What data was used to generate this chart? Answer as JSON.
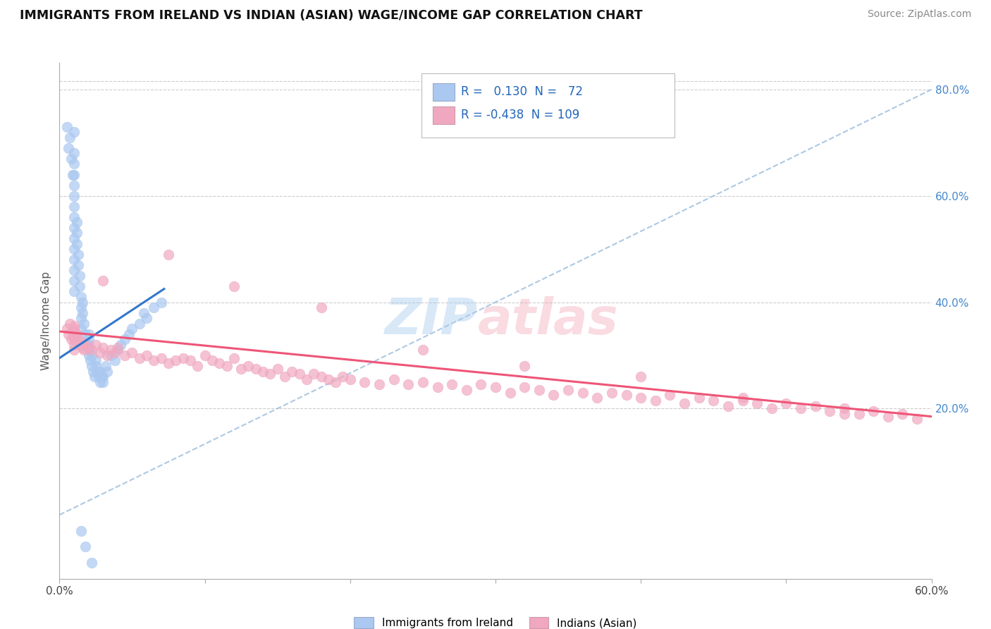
{
  "title": "IMMIGRANTS FROM IRELAND VS INDIAN (ASIAN) WAGE/INCOME GAP CORRELATION CHART",
  "source": "Source: ZipAtlas.com",
  "ylabel": "Wage/Income Gap",
  "x_min": 0.0,
  "x_max": 0.6,
  "y_min": -0.12,
  "y_max": 0.85,
  "ytick_values": [
    0.2,
    0.4,
    0.6,
    0.8
  ],
  "ytick_labels": [
    "20.0%",
    "40.0%",
    "60.0%",
    "80.0%"
  ],
  "xtick_values": [
    0.0,
    0.1,
    0.2,
    0.3,
    0.4,
    0.5,
    0.6
  ],
  "xtick_labels": [
    "0.0%",
    "",
    "",
    "",
    "",
    "",
    "60.0%"
  ],
  "legend_r_ireland": " 0.130",
  "legend_n_ireland": " 72",
  "legend_r_indian": "-0.438",
  "legend_n_indian": "109",
  "ireland_color": "#aac8f0",
  "indian_color": "#f0a8c0",
  "ireland_line_color": "#3377cc",
  "indian_line_color": "#ee5577",
  "diagonal_color": "#99bbdd",
  "watermark_zip": "ZIP",
  "watermark_atlas": "atlas",
  "ireland_scatter_x": [
    0.005,
    0.006,
    0.007,
    0.008,
    0.009,
    0.01,
    0.01,
    0.01,
    0.01,
    0.01,
    0.01,
    0.01,
    0.01,
    0.01,
    0.01,
    0.01,
    0.01,
    0.01,
    0.01,
    0.01,
    0.012,
    0.012,
    0.012,
    0.013,
    0.013,
    0.014,
    0.014,
    0.015,
    0.015,
    0.015,
    0.015,
    0.016,
    0.016,
    0.017,
    0.018,
    0.019,
    0.02,
    0.02,
    0.02,
    0.02,
    0.02,
    0.021,
    0.022,
    0.022,
    0.023,
    0.024,
    0.025,
    0.025,
    0.026,
    0.027,
    0.028,
    0.028,
    0.029,
    0.03,
    0.03,
    0.032,
    0.033,
    0.035,
    0.038,
    0.04,
    0.042,
    0.045,
    0.048,
    0.05,
    0.055,
    0.058,
    0.06,
    0.065,
    0.07,
    0.015,
    0.018,
    0.022
  ],
  "ireland_scatter_y": [
    0.73,
    0.69,
    0.71,
    0.67,
    0.64,
    0.72,
    0.68,
    0.66,
    0.64,
    0.62,
    0.6,
    0.58,
    0.56,
    0.54,
    0.52,
    0.5,
    0.48,
    0.46,
    0.44,
    0.42,
    0.55,
    0.53,
    0.51,
    0.49,
    0.47,
    0.45,
    0.43,
    0.41,
    0.39,
    0.37,
    0.35,
    0.4,
    0.38,
    0.36,
    0.34,
    0.32,
    0.3,
    0.31,
    0.32,
    0.33,
    0.34,
    0.29,
    0.28,
    0.3,
    0.27,
    0.26,
    0.28,
    0.29,
    0.27,
    0.26,
    0.25,
    0.27,
    0.26,
    0.25,
    0.26,
    0.28,
    0.27,
    0.3,
    0.29,
    0.31,
    0.32,
    0.33,
    0.34,
    0.35,
    0.36,
    0.38,
    0.37,
    0.39,
    0.4,
    -0.03,
    -0.06,
    -0.09
  ],
  "indian_scatter_x": [
    0.005,
    0.006,
    0.007,
    0.008,
    0.009,
    0.01,
    0.01,
    0.01,
    0.01,
    0.01,
    0.01,
    0.01,
    0.01,
    0.012,
    0.013,
    0.014,
    0.015,
    0.016,
    0.017,
    0.018,
    0.02,
    0.022,
    0.025,
    0.028,
    0.03,
    0.033,
    0.035,
    0.038,
    0.04,
    0.045,
    0.05,
    0.055,
    0.06,
    0.065,
    0.07,
    0.075,
    0.08,
    0.085,
    0.09,
    0.095,
    0.1,
    0.105,
    0.11,
    0.115,
    0.12,
    0.125,
    0.13,
    0.135,
    0.14,
    0.145,
    0.15,
    0.155,
    0.16,
    0.165,
    0.17,
    0.175,
    0.18,
    0.185,
    0.19,
    0.195,
    0.2,
    0.21,
    0.22,
    0.23,
    0.24,
    0.25,
    0.26,
    0.27,
    0.28,
    0.29,
    0.3,
    0.31,
    0.32,
    0.33,
    0.34,
    0.35,
    0.36,
    0.37,
    0.38,
    0.39,
    0.4,
    0.41,
    0.42,
    0.43,
    0.44,
    0.45,
    0.46,
    0.47,
    0.48,
    0.49,
    0.5,
    0.51,
    0.52,
    0.53,
    0.54,
    0.55,
    0.56,
    0.57,
    0.58,
    0.59,
    0.075,
    0.12,
    0.18,
    0.25,
    0.32,
    0.4,
    0.47,
    0.54,
    0.03
  ],
  "indian_scatter_y": [
    0.35,
    0.34,
    0.36,
    0.33,
    0.345,
    0.35,
    0.335,
    0.345,
    0.355,
    0.34,
    0.33,
    0.32,
    0.31,
    0.34,
    0.33,
    0.32,
    0.325,
    0.315,
    0.31,
    0.32,
    0.315,
    0.31,
    0.32,
    0.305,
    0.315,
    0.3,
    0.31,
    0.305,
    0.315,
    0.3,
    0.305,
    0.295,
    0.3,
    0.29,
    0.295,
    0.285,
    0.29,
    0.295,
    0.29,
    0.28,
    0.3,
    0.29,
    0.285,
    0.28,
    0.295,
    0.275,
    0.28,
    0.275,
    0.27,
    0.265,
    0.275,
    0.26,
    0.27,
    0.265,
    0.255,
    0.265,
    0.26,
    0.255,
    0.25,
    0.26,
    0.255,
    0.25,
    0.245,
    0.255,
    0.245,
    0.25,
    0.24,
    0.245,
    0.235,
    0.245,
    0.24,
    0.23,
    0.24,
    0.235,
    0.225,
    0.235,
    0.23,
    0.22,
    0.23,
    0.225,
    0.22,
    0.215,
    0.225,
    0.21,
    0.22,
    0.215,
    0.205,
    0.215,
    0.21,
    0.2,
    0.21,
    0.2,
    0.205,
    0.195,
    0.2,
    0.19,
    0.195,
    0.185,
    0.19,
    0.18,
    0.49,
    0.43,
    0.39,
    0.31,
    0.28,
    0.26,
    0.22,
    0.19,
    0.44
  ]
}
